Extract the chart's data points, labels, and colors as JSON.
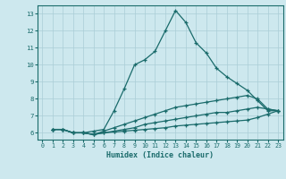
{
  "xlabel": "Humidex (Indice chaleur)",
  "ylabel": "",
  "background_color": "#cde8ee",
  "grid_color": "#aacdd6",
  "line_color": "#1a6b6b",
  "xlim": [
    -0.5,
    23.5
  ],
  "ylim": [
    5.6,
    13.5
  ],
  "yticks": [
    6,
    7,
    8,
    9,
    10,
    11,
    12,
    13
  ],
  "xticks": [
    0,
    1,
    2,
    3,
    4,
    5,
    6,
    7,
    8,
    9,
    10,
    11,
    12,
    13,
    14,
    15,
    16,
    17,
    18,
    19,
    20,
    21,
    22,
    23
  ],
  "lines": [
    {
      "x": [
        1,
        2,
        3,
        4,
        5,
        6,
        7,
        8,
        9,
        10,
        11,
        12,
        13,
        14,
        15,
        16,
        17,
        18,
        19,
        20,
        21,
        22,
        23
      ],
      "y": [
        6.2,
        6.2,
        6.0,
        6.0,
        6.1,
        6.2,
        7.3,
        8.6,
        10.0,
        10.3,
        10.8,
        12.0,
        13.2,
        12.5,
        11.3,
        10.7,
        9.8,
        9.3,
        8.9,
        8.5,
        7.9,
        7.3,
        7.3
      ]
    },
    {
      "x": [
        1,
        2,
        3,
        4,
        5,
        6,
        7,
        8,
        9,
        10,
        11,
        12,
        13,
        14,
        15,
        16,
        17,
        18,
        19,
        20,
        21,
        22,
        23
      ],
      "y": [
        6.2,
        6.2,
        6.0,
        6.0,
        5.9,
        6.1,
        6.3,
        6.5,
        6.7,
        6.9,
        7.1,
        7.3,
        7.5,
        7.6,
        7.7,
        7.8,
        7.9,
        8.0,
        8.1,
        8.2,
        8.0,
        7.4,
        7.3
      ]
    },
    {
      "x": [
        1,
        2,
        3,
        4,
        5,
        6,
        7,
        8,
        9,
        10,
        11,
        12,
        13,
        14,
        15,
        16,
        17,
        18,
        19,
        20,
        21,
        22,
        23
      ],
      "y": [
        6.2,
        6.2,
        6.0,
        6.0,
        5.9,
        6.0,
        6.1,
        6.2,
        6.3,
        6.5,
        6.6,
        6.7,
        6.8,
        6.9,
        7.0,
        7.1,
        7.2,
        7.2,
        7.3,
        7.4,
        7.5,
        7.4,
        7.3
      ]
    },
    {
      "x": [
        1,
        2,
        3,
        4,
        5,
        6,
        7,
        8,
        9,
        10,
        11,
        12,
        13,
        14,
        15,
        16,
        17,
        18,
        19,
        20,
        21,
        22,
        23
      ],
      "y": [
        6.2,
        6.2,
        6.0,
        6.0,
        5.9,
        6.0,
        6.05,
        6.1,
        6.15,
        6.2,
        6.25,
        6.3,
        6.4,
        6.45,
        6.5,
        6.55,
        6.6,
        6.65,
        6.7,
        6.75,
        6.9,
        7.1,
        7.3
      ]
    }
  ]
}
